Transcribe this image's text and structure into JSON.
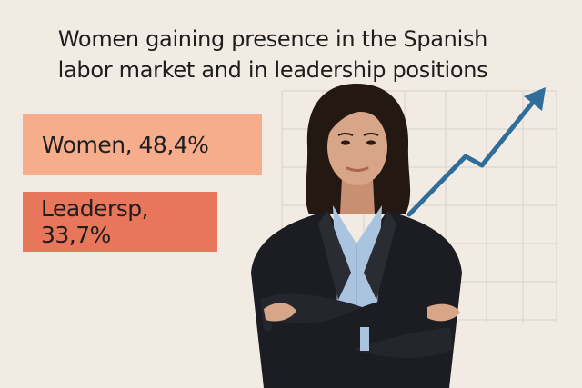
{
  "title": {
    "line1": "Women gaining presence in the Spanish",
    "line2": "labor market and in leadership positions"
  },
  "stats": [
    {
      "label": "Women, 48,4%",
      "color": "#f5ad8c"
    },
    {
      "label": "Leadersp, 33,7%",
      "color": "#e8765a"
    }
  ],
  "colors": {
    "background": "#f1ebe3",
    "grid": "#dcd6cf",
    "arrow": "#2f6d9a",
    "jacket": "#1c1d22",
    "shirt": "#aac4e0",
    "hair": "#241812",
    "skin": "#d7a587"
  },
  "icons": {
    "trend": "trend-arrow-icon",
    "person": "businesswoman-illustration"
  }
}
